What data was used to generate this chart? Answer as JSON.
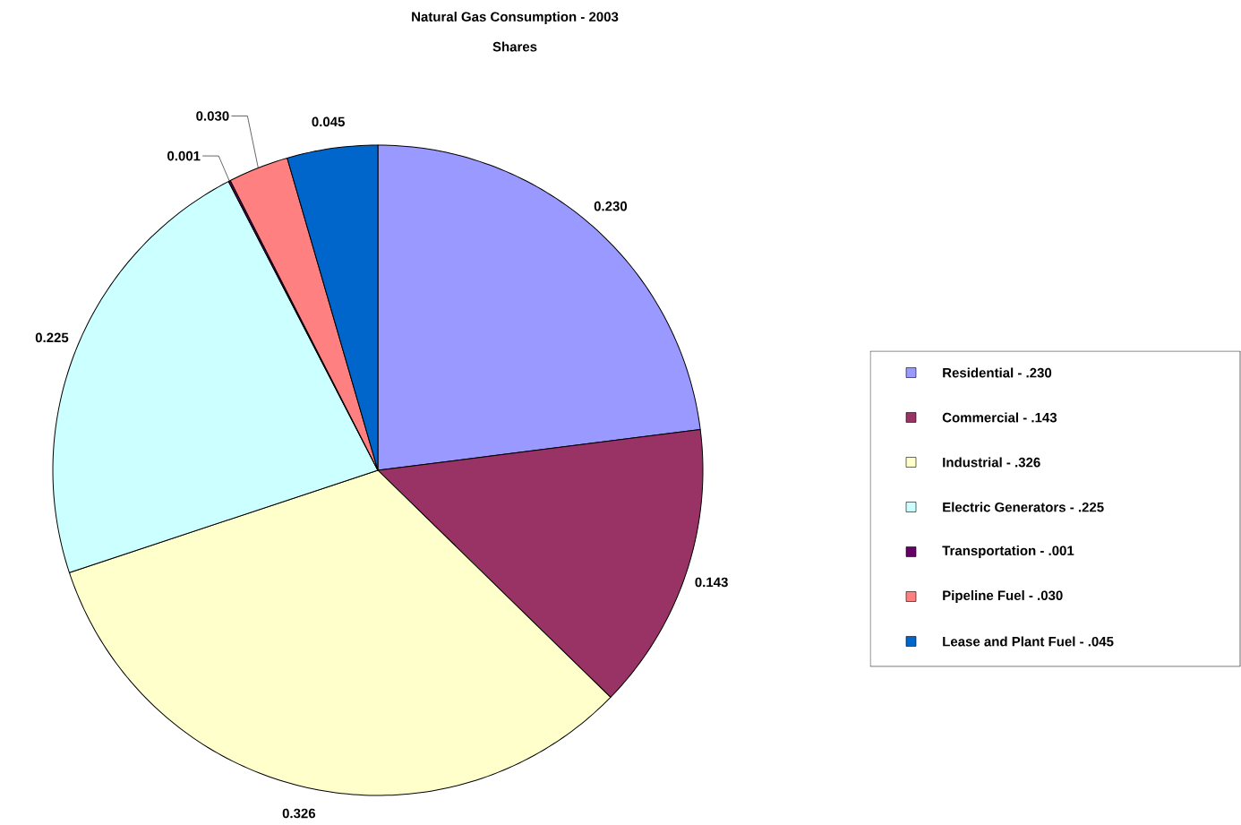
{
  "chart_data": {
    "type": "pie",
    "title": "Natural Gas Consumption - 2003",
    "subtitle": "Shares",
    "categories": [
      "Residential - .230",
      "Commercial - .143",
      "Industrial - .326",
      "Electric Generators - .225",
      "Transportation - .001",
      "Pipeline Fuel - .030",
      "Lease and Plant Fuel - .045"
    ],
    "values": [
      0.23,
      0.143,
      0.326,
      0.225,
      0.001,
      0.03,
      0.045
    ],
    "value_labels": [
      "0.230",
      "0.143",
      "0.326",
      "0.225",
      "0.001",
      "0.030",
      "0.045"
    ],
    "colors": [
      "#9999ff",
      "#993366",
      "#ffffcc",
      "#ccffff",
      "#660066",
      "#ff8080",
      "#0066cc"
    ],
    "legend": "right"
  }
}
